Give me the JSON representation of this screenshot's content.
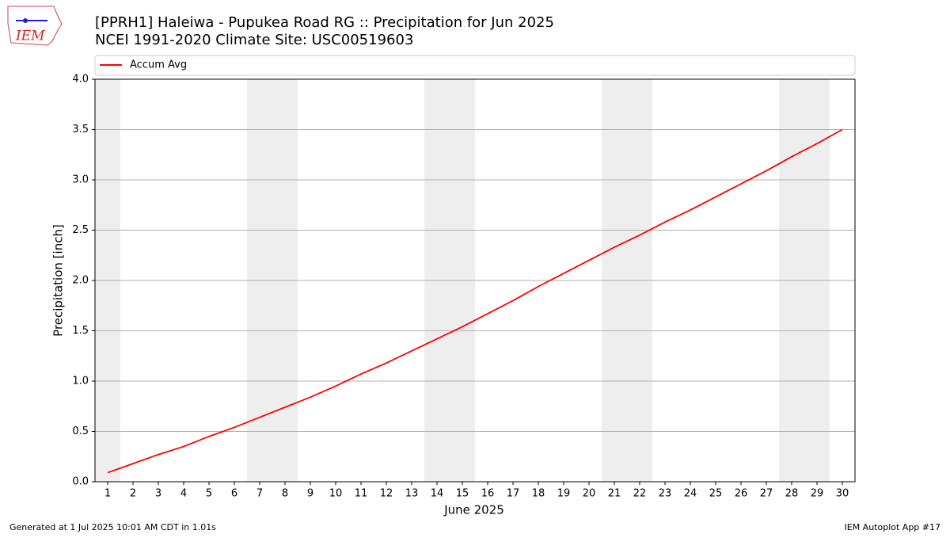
{
  "chart_data": {
    "type": "line",
    "title": "[PPRH1] Haleiwa - Pupukea Road RG :: Precipitation for Jun 2025",
    "subtitle": "NCEI 1991-2020 Climate Site: USC00519603",
    "xlabel": "June 2025",
    "ylabel": "Precipitation [inch]",
    "x": [
      1,
      2,
      3,
      4,
      5,
      6,
      7,
      8,
      9,
      10,
      11,
      12,
      13,
      14,
      15,
      16,
      17,
      18,
      19,
      20,
      21,
      22,
      23,
      24,
      25,
      26,
      27,
      28,
      29,
      30
    ],
    "series": [
      {
        "name": "Accum Avg",
        "color": "#ff0000",
        "values": [
          0.09,
          0.18,
          0.27,
          0.35,
          0.45,
          0.54,
          0.64,
          0.74,
          0.84,
          0.95,
          1.07,
          1.18,
          1.3,
          1.42,
          1.54,
          1.67,
          1.8,
          1.94,
          2.07,
          2.2,
          2.33,
          2.45,
          2.58,
          2.7,
          2.83,
          2.96,
          3.09,
          3.23,
          3.36,
          3.5
        ]
      }
    ],
    "shaded_ranges": [
      [
        0.5,
        1.5
      ],
      [
        6.5,
        8.5
      ],
      [
        13.5,
        15.5
      ],
      [
        20.5,
        22.5
      ],
      [
        27.5,
        29.5
      ]
    ],
    "shade_color": "#eeeeee",
    "xlim": [
      0.5,
      30.5
    ],
    "ylim": [
      0,
      4
    ],
    "xticks": [
      1,
      2,
      3,
      4,
      5,
      6,
      7,
      8,
      9,
      10,
      11,
      12,
      13,
      14,
      15,
      16,
      17,
      18,
      19,
      20,
      21,
      22,
      23,
      24,
      25,
      26,
      27,
      28,
      29,
      30
    ],
    "yticks": [
      {
        "value": 0,
        "label": "0.0"
      },
      {
        "value": 0.5,
        "label": "0.5"
      },
      {
        "value": 1,
        "label": "1.0"
      },
      {
        "value": 1.5,
        "label": "1.5"
      },
      {
        "value": 2,
        "label": "2.0"
      },
      {
        "value": 2.5,
        "label": "2.5"
      },
      {
        "value": 3,
        "label": "3.0"
      },
      {
        "value": 3.5,
        "label": "3.5"
      },
      {
        "value": 4,
        "label": "4.0"
      }
    ],
    "grid": "y",
    "legend": "top"
  },
  "logo_text": "IEM",
  "footer_left": "Generated at 1 Jul 2025 10:01 AM CDT in 1.01s",
  "footer_right": "IEM Autoplot App #17"
}
